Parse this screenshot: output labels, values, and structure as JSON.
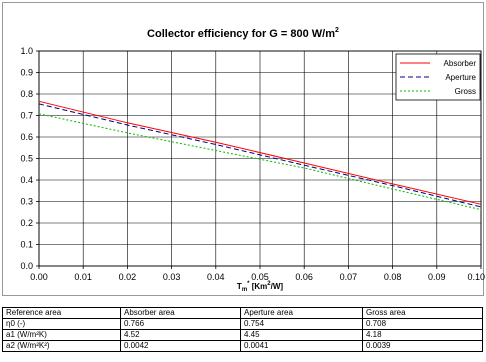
{
  "chart_data": {
    "type": "line",
    "title": "Collector efficiency for G = 800 W/m",
    "title_sup": "2",
    "xlabel_parts": [
      "T",
      "m",
      "*",
      " [Km",
      "2",
      "/W]"
    ],
    "xlim": [
      0,
      0.1
    ],
    "ylim": [
      0,
      1
    ],
    "xticks": [
      "0.00",
      "0.01",
      "0.02",
      "0.03",
      "0.04",
      "0.05",
      "0.06",
      "0.07",
      "0.08",
      "0.09",
      "0.10"
    ],
    "yticks": [
      "0.0",
      "0.1",
      "0.2",
      "0.3",
      "0.4",
      "0.5",
      "0.6",
      "0.7",
      "0.8",
      "0.9",
      "1.0"
    ],
    "grid": true,
    "legend_position": "top-right",
    "series": [
      {
        "name": "Absorber",
        "color": "#ff0000",
        "dash": "solid",
        "x": [
          0.0,
          0.02,
          0.04,
          0.06,
          0.08,
          0.1
        ],
        "y": [
          0.766,
          0.666,
          0.576,
          0.479,
          0.382,
          0.287
        ]
      },
      {
        "name": "Aperture",
        "color": "#000080",
        "dash": "dashed",
        "x": [
          0.0,
          0.02,
          0.04,
          0.06,
          0.08,
          0.1
        ],
        "y": [
          0.754,
          0.656,
          0.565,
          0.469,
          0.374,
          0.275
        ]
      },
      {
        "name": "Gross",
        "color": "#00bb00",
        "dash": "dotted",
        "x": [
          0.0,
          0.02,
          0.04,
          0.06,
          0.08,
          0.1
        ],
        "y": [
          0.708,
          0.619,
          0.537,
          0.456,
          0.358,
          0.262
        ]
      }
    ]
  },
  "table": {
    "header": [
      "Reference area",
      "Absorber area",
      "Aperture area",
      "Gross area"
    ],
    "rows": [
      {
        "label": "η0 (-)",
        "values": [
          "0.766",
          "0.754",
          "0.708"
        ]
      },
      {
        "label": "a1 (W/m²K)",
        "values": [
          "4.52",
          "4.45",
          "4.18"
        ]
      },
      {
        "label": "a2 (W/m²K²)",
        "values": [
          "0.0042",
          "0.0041",
          "0.0039"
        ]
      }
    ]
  }
}
